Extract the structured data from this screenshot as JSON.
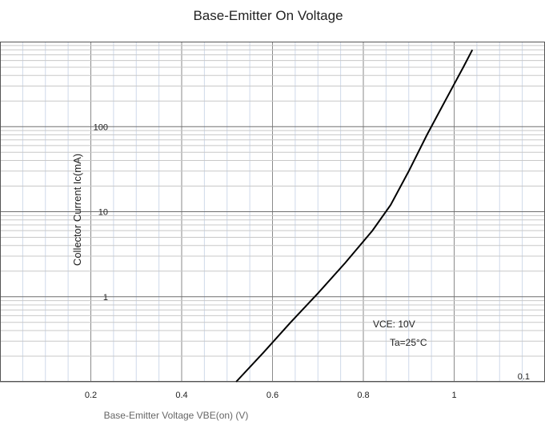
{
  "chart_data": {
    "type": "line",
    "title": "Base-Emitter On Voltage",
    "xlabel": "Base-Emitter Voltage VBE(on) (V)",
    "ylabel": "Collector Current  Ic(mA)",
    "x_ticks": [
      "0.2",
      "0.4",
      "0.6",
      "0.8",
      "1"
    ],
    "y_ticks": [
      "100",
      "10",
      "1",
      "0.1"
    ],
    "x_tick_values": [
      0.2,
      0.4,
      0.6,
      0.8,
      1.0
    ],
    "y_tick_values": [
      100,
      10,
      1,
      0.1
    ],
    "xlim": [
      0.0,
      1.2
    ],
    "ylim": [
      0.1,
      1000
    ],
    "y_scale": "log",
    "grid": true,
    "annotations": [
      "VCE: 10V",
      "Ta=25°C"
    ],
    "series": [
      {
        "x": [
          0.52,
          0.58,
          0.64,
          0.7,
          0.76,
          0.82,
          0.86,
          0.9,
          0.94,
          0.98,
          1.02,
          1.04
        ],
        "y": [
          0.1,
          0.22,
          0.5,
          1.1,
          2.5,
          6.0,
          12,
          30,
          80,
          200,
          500,
          800
        ]
      }
    ]
  }
}
